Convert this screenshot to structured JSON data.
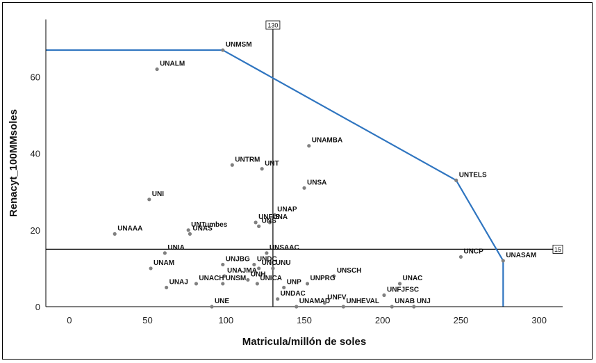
{
  "chart_data": {
    "type": "scatter",
    "xlabel": "Matricula/millón de soles",
    "ylabel": "Renacyt_100MMsoles",
    "xlim": [
      -15,
      315
    ],
    "ylim": [
      0,
      75
    ],
    "xticks": [
      0,
      50,
      100,
      150,
      200,
      250,
      300
    ],
    "yticks": [
      0,
      20,
      40,
      60
    ],
    "grid": false,
    "points": [
      {
        "label": "UNMSM",
        "x": 98,
        "y": 67
      },
      {
        "label": "UNALM",
        "x": 56,
        "y": 62
      },
      {
        "label": "UNAMBA",
        "x": 153,
        "y": 42
      },
      {
        "label": "UNTRM",
        "x": 104,
        "y": 37
      },
      {
        "label": "UNT",
        "x": 123,
        "y": 36
      },
      {
        "label": "UNTELS",
        "x": 247,
        "y": 33
      },
      {
        "label": "UNSA",
        "x": 150,
        "y": 31
      },
      {
        "label": "UNI",
        "x": 51,
        "y": 28
      },
      {
        "label": "UNAP",
        "x": 131,
        "y": 24
      },
      {
        "label": "UNA",
        "x": 128,
        "y": 22
      },
      {
        "label": "UNF-S",
        "x": 119,
        "y": 22
      },
      {
        "label": "UNS",
        "x": 121,
        "y": 21
      },
      {
        "label": "UNTumbes",
        "x": 76,
        "y": 20
      },
      {
        "label": "UNAS",
        "x": 77,
        "y": 19
      },
      {
        "label": "UNAAA",
        "x": 29,
        "y": 19
      },
      {
        "label": "UNIA",
        "x": 61,
        "y": 14
      },
      {
        "label": "UNSAAC",
        "x": 126,
        "y": 14
      },
      {
        "label": "UNCP",
        "x": 250,
        "y": 13
      },
      {
        "label": "UNASAM",
        "x": 277,
        "y": 12
      },
      {
        "label": "UNAM",
        "x": 52,
        "y": 10
      },
      {
        "label": "UNJBG",
        "x": 98,
        "y": 11
      },
      {
        "label": "UNDC",
        "x": 118,
        "y": 11
      },
      {
        "label": "UNU",
        "x": 130,
        "y": 10
      },
      {
        "label": "UNC",
        "x": 121,
        "y": 10
      },
      {
        "label": "UNSCH",
        "x": 169,
        "y": 8
      },
      {
        "label": "UNAJMA",
        "x": 99,
        "y": 8
      },
      {
        "label": "UNH",
        "x": 114,
        "y": 7
      },
      {
        "label": "UNPRG",
        "x": 152,
        "y": 6
      },
      {
        "label": "UNAJ",
        "x": 62,
        "y": 5
      },
      {
        "label": "UNACH",
        "x": 81,
        "y": 6
      },
      {
        "label": "UNSM",
        "x": 98,
        "y": 6
      },
      {
        "label": "UNICA",
        "x": 120,
        "y": 6
      },
      {
        "label": "UNP",
        "x": 137,
        "y": 5
      },
      {
        "label": "UNAC",
        "x": 211,
        "y": 6
      },
      {
        "label": "UNFJFSC",
        "x": 201,
        "y": 3
      },
      {
        "label": "UNE",
        "x": 91,
        "y": 0
      },
      {
        "label": "UNDAC",
        "x": 133,
        "y": 2
      },
      {
        "label": "UNAMAD",
        "x": 145,
        "y": 0
      },
      {
        "label": "UNFV",
        "x": 163,
        "y": 1
      },
      {
        "label": "UNHEVAL",
        "x": 175,
        "y": 0
      },
      {
        "label": "UNAB",
        "x": 206,
        "y": 0
      },
      {
        "label": "UNJ",
        "x": 220,
        "y": 0
      }
    ],
    "reference_lines": [
      {
        "orientation": "vertical",
        "value": 130,
        "label": "130"
      },
      {
        "orientation": "horizontal",
        "value": 15,
        "label": "15"
      }
    ],
    "frontier": {
      "color": "#2f75c0",
      "points": [
        {
          "x": -15,
          "y": 67
        },
        {
          "x": 98,
          "y": 67
        },
        {
          "x": 247,
          "y": 33
        },
        {
          "x": 277,
          "y": 12
        },
        {
          "x": 277,
          "y": 0
        }
      ]
    },
    "point_color": "#808080",
    "line_color": "#000000"
  }
}
